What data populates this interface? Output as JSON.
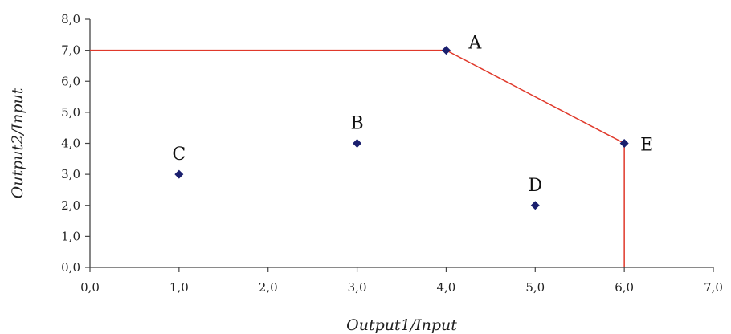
{
  "chart_data": {
    "type": "scatter",
    "title": "",
    "xlabel": "Output1/Input",
    "ylabel": "Output2/Input",
    "xlim": [
      0,
      7
    ],
    "ylim": [
      0,
      8
    ],
    "x_ticks": [
      {
        "value": 0,
        "label": "0,0"
      },
      {
        "value": 1,
        "label": "1,0"
      },
      {
        "value": 2,
        "label": "2,0"
      },
      {
        "value": 3,
        "label": "3,0"
      },
      {
        "value": 4,
        "label": "4,0"
      },
      {
        "value": 5,
        "label": "5,0"
      },
      {
        "value": 6,
        "label": "6,0"
      },
      {
        "value": 7,
        "label": "7,0"
      }
    ],
    "y_ticks": [
      {
        "value": 0,
        "label": "0,0"
      },
      {
        "value": 1,
        "label": "1,0"
      },
      {
        "value": 2,
        "label": "2,0"
      },
      {
        "value": 3,
        "label": "3,0"
      },
      {
        "value": 4,
        "label": "4,0"
      },
      {
        "value": 5,
        "label": "5,0"
      },
      {
        "value": 6,
        "label": "6,0"
      },
      {
        "value": 7,
        "label": "7,0"
      },
      {
        "value": 8,
        "label": "8,0"
      }
    ],
    "points": [
      {
        "label": "A",
        "x": 4,
        "y": 7
      },
      {
        "label": "B",
        "x": 3,
        "y": 4
      },
      {
        "label": "C",
        "x": 1,
        "y": 3
      },
      {
        "label": "D",
        "x": 5,
        "y": 2
      },
      {
        "label": "E",
        "x": 6,
        "y": 4
      }
    ],
    "frontier": [
      {
        "x": 0,
        "y": 7
      },
      {
        "x": 4,
        "y": 7
      },
      {
        "x": 6,
        "y": 4
      },
      {
        "x": 6,
        "y": 0
      }
    ],
    "grid": false,
    "colors": {
      "point": "#1a1f6e",
      "frontier": "#e0392b",
      "axis": "#444444"
    }
  }
}
